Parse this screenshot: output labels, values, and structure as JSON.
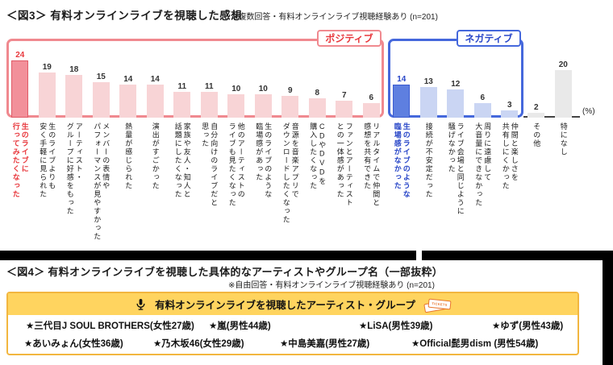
{
  "fig3": {
    "title": "＜図3＞ 有料オンラインライブを視聴した感想",
    "note": "※複数回答・有料オンラインライブ視聴経験あり (n=201)",
    "unit_label": "(%)",
    "positive_label": "ポジティブ",
    "negative_label": "ネガティブ",
    "chart_data": {
      "type": "bar",
      "title": "有料オンラインライブを視聴した感想",
      "unit": "%",
      "ylim": [
        0,
        25
      ],
      "grid": false,
      "items": [
        {
          "label": "生のライブに\n行ってみたくなった",
          "value": 24,
          "group": "positive",
          "em": true
        },
        {
          "label": "生のライブよりも\n安く手軽に見られた",
          "value": 19,
          "group": "positive",
          "em": false
        },
        {
          "label": "アーティスト・\nグループに好感をもった",
          "value": 18,
          "group": "positive",
          "em": false
        },
        {
          "label": "メンバーの表情や\nパフォーマンスが見やすかった",
          "value": 15,
          "group": "positive",
          "em": false
        },
        {
          "label": "熱量が感じられた",
          "value": 14,
          "group": "positive",
          "em": false
        },
        {
          "label": "演出がすごかった",
          "value": 14,
          "group": "positive",
          "em": false
        },
        {
          "label": "家族や友人・知人と\n話題にしたくなった",
          "value": 11,
          "group": "positive",
          "em": false
        },
        {
          "label": "自分向けのライブだと\n思った",
          "value": 11,
          "group": "positive",
          "em": false
        },
        {
          "label": "他のアーティストの\nライブも見たくなった",
          "value": 10,
          "group": "positive",
          "em": false
        },
        {
          "label": "生のライブのような\n臨場感があった",
          "value": 10,
          "group": "positive",
          "em": false
        },
        {
          "label": "音源を音楽アプリで\nダウンロードしたくなった",
          "value": 9,
          "group": "positive",
          "em": false
        },
        {
          "label": "CDやDVDを\n購入したくなった",
          "value": 8,
          "group": "positive",
          "em": false
        },
        {
          "label": "ファンとアーティスト\nとの一体感があった",
          "value": 7,
          "group": "positive",
          "em": false
        },
        {
          "label": "リアルタイムで仲間と\n感想を共有できた",
          "value": 6,
          "group": "positive",
          "em": false
        },
        {
          "label": "生のライブのような\n臨場感がなかった",
          "value": 14,
          "group": "negative",
          "em": true
        },
        {
          "label": "接続が不安定だった",
          "value": 13,
          "group": "negative",
          "em": false
        },
        {
          "label": "ライブ会場と同じように\n騒げなかった",
          "value": 12,
          "group": "negative",
          "em": false
        },
        {
          "label": "周りに遠慮して\n大音量にできなかった",
          "value": 6,
          "group": "negative",
          "em": false
        },
        {
          "label": "仲間と楽しさを\n共有しにくかった",
          "value": 3,
          "group": "negative",
          "em": false
        },
        {
          "label": "その他",
          "value": 2,
          "group": "other",
          "em": false
        },
        {
          "label": "特になし",
          "value": 20,
          "group": "other",
          "em": false
        }
      ]
    }
  },
  "fig4": {
    "title": "＜図4＞ 有料オンラインライブを視聴した具体的なアーティストやグループ名（一部抜粋）",
    "note": "※自由回答・有料オンラインライブ視聴経験あり (n=201)",
    "box_title": "有料オンラインライブを視聴したアーティスト・グループ",
    "tickets_label": "TICKETS",
    "rows": [
      [
        "★三代目J SOUL BROTHERS(女性27歳)",
        "★嵐(男性44歳)",
        "★LiSA(男性39歳)",
        "★ゆず(男性43歳)"
      ],
      [
        "★あいみょん(女性36歳)",
        "★乃木坂46(女性29歳)",
        "★中島美嘉(男性27歳)",
        "★Official髭男dism (男性54歳)"
      ]
    ]
  },
  "colors": {
    "positive_frame": "#F0898F",
    "positive_bar": "#F8D4D6",
    "positive_emphasis": "#F2909A",
    "positive_text": "#E8383D",
    "negative_frame": "#4568DC",
    "negative_bar": "#CAD5F3",
    "negative_emphasis": "#5E7FE0",
    "negative_text": "#2947C8",
    "other_bar": "#E9E9E9",
    "box_border": "#F2B63F",
    "box_header_bg": "#FFD45F"
  }
}
